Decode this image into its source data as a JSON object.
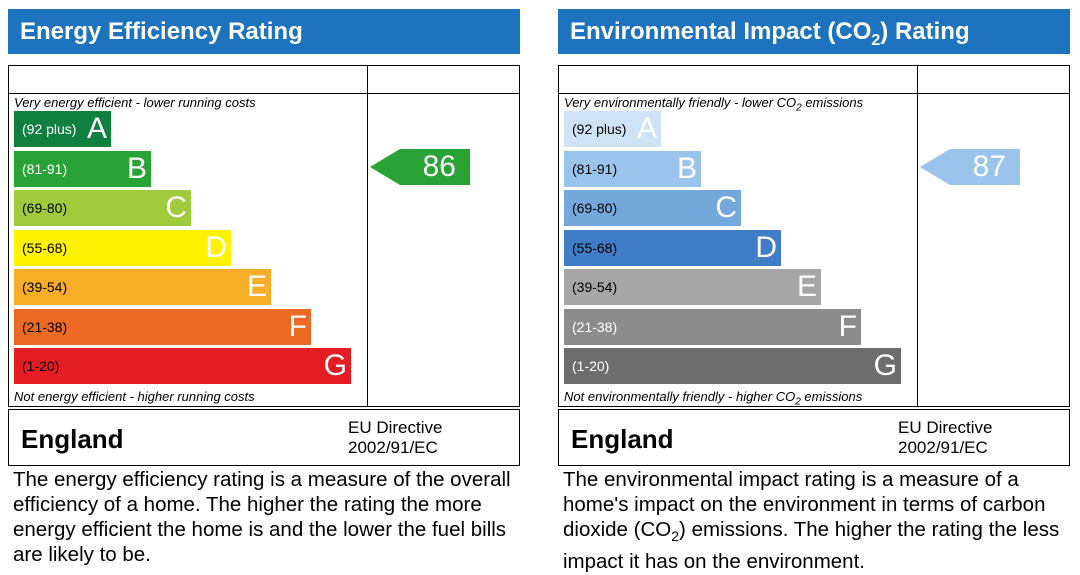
{
  "energy": {
    "title": "Energy Efficiency Rating",
    "caption_top": "Very energy efficient - lower running costs",
    "caption_bottom": "Not energy efficient - higher running costs",
    "bands": [
      {
        "range": "(92 plus)",
        "letter": "A",
        "color": "#0f8040",
        "text_color": "#ffffff"
      },
      {
        "range": "(81-91)",
        "letter": "B",
        "color": "#2aa336",
        "text_color": "#ffffff"
      },
      {
        "range": "(69-80)",
        "letter": "C",
        "color": "#9fcb3c",
        "text_color": "#000000"
      },
      {
        "range": "(55-68)",
        "letter": "D",
        "color": "#fff200",
        "text_color": "#000000"
      },
      {
        "range": "(39-54)",
        "letter": "E",
        "color": "#f7ad28",
        "text_color": "#000000"
      },
      {
        "range": "(21-38)",
        "letter": "F",
        "color": "#ed6a25",
        "text_color": "#000000"
      },
      {
        "range": "(1-20)",
        "letter": "G",
        "color": "#e31d23",
        "text_color": "#000000"
      }
    ],
    "current_rating": "86",
    "current_color": "#2aa336",
    "country": "England",
    "directive_line1": "EU Directive",
    "directive_line2": "2002/91/EC",
    "description": "The energy efficiency rating is a measure of the overall efficiency of a home. The higher the rating the more energy efficient the home is and the lower the fuel bills are likely to be."
  },
  "environment": {
    "title_pre": "Environmental Impact (CO",
    "title_sub": "2",
    "title_post": ") Rating",
    "caption_top_pre": "Very environmentally friendly - lower CO",
    "caption_top_sub": "2",
    "caption_top_post": " emissions",
    "caption_bottom_pre": "Not environmentally friendly - higher CO",
    "caption_bottom_sub": "2",
    "caption_bottom_post": " emissions",
    "bands": [
      {
        "range": "(92 plus)",
        "letter": "A",
        "color": "#cfe3f6",
        "text_color": "#000000"
      },
      {
        "range": "(81-91)",
        "letter": "B",
        "color": "#9bc4ec",
        "text_color": "#000000"
      },
      {
        "range": "(69-80)",
        "letter": "C",
        "color": "#74a8db",
        "text_color": "#000000"
      },
      {
        "range": "(55-68)",
        "letter": "D",
        "color": "#3f7dc6",
        "text_color": "#000000"
      },
      {
        "range": "(39-54)",
        "letter": "E",
        "color": "#a6a6a6",
        "text_color": "#000000"
      },
      {
        "range": "(21-38)",
        "letter": "F",
        "color": "#8c8c8c",
        "text_color": "#ffffff"
      },
      {
        "range": "(1-20)",
        "letter": "G",
        "color": "#6d6d6d",
        "text_color": "#ffffff"
      }
    ],
    "current_rating": "87",
    "current_color": "#9bc4ec",
    "country": "England",
    "directive_line1": "EU Directive",
    "directive_line2": "2002/91/EC",
    "description_pre": "The environmental impact rating is a measure of a home's impact on the environment in terms of carbon dioxide (CO",
    "description_sub": "2",
    "description_post": ") emissions. The higher the rating the less impact it has on the environment."
  }
}
